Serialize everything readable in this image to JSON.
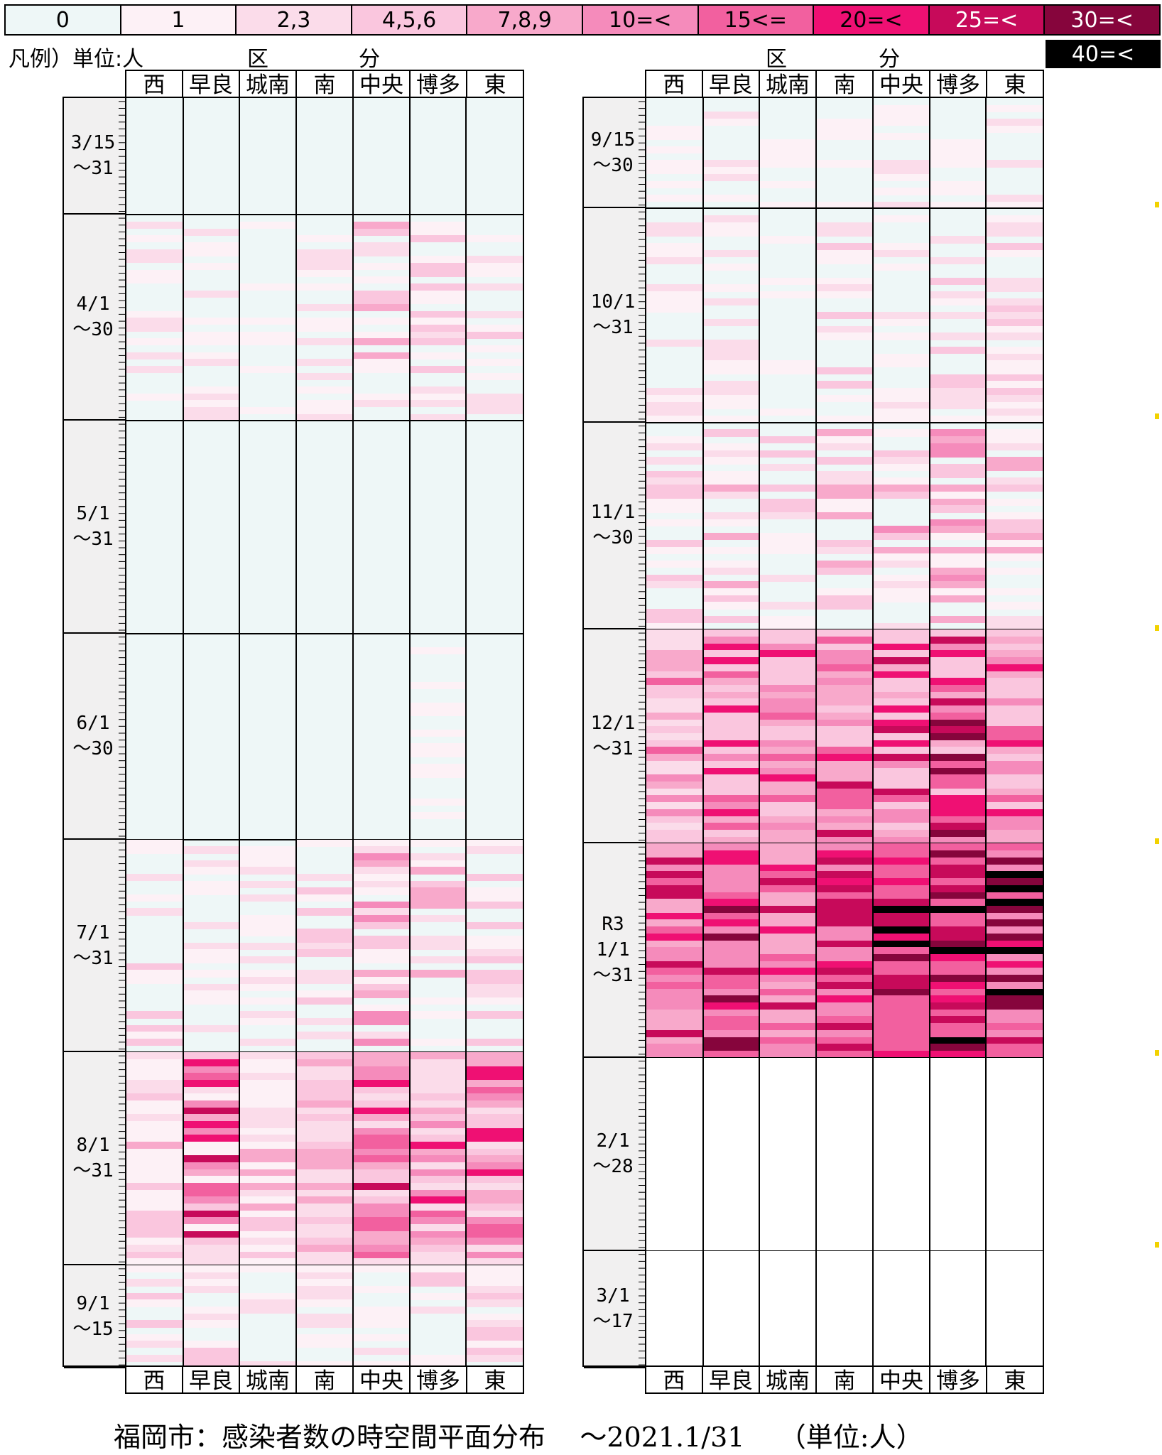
{
  "legend": {
    "items": [
      {
        "label": "0",
        "color": "#eef7f7",
        "text": "#000000"
      },
      {
        "label": "1",
        "color": "#fdf1f6",
        "text": "#000000"
      },
      {
        "label": "2,3",
        "color": "#fbdcea",
        "text": "#000000"
      },
      {
        "label": "4,5,6",
        "color": "#fac6de",
        "text": "#000000"
      },
      {
        "label": "7,8,9",
        "color": "#f8a9cb",
        "text": "#000000"
      },
      {
        "label": "10=<",
        "color": "#f58bbb",
        "text": "#000000"
      },
      {
        "label": "15<=",
        "color": "#f2609f",
        "text": "#000000"
      },
      {
        "label": "20=<",
        "color": "#ef1073",
        "text": "#000000"
      },
      {
        "label": "25=<",
        "color": "#c70a5a",
        "text": "#ffffff"
      },
      {
        "label": "30=<",
        "color": "#86053c",
        "text": "#ffffff"
      }
    ],
    "extra": {
      "label": "40=<",
      "color": "#000000",
      "text": "#ffffff"
    },
    "unit_label": "凡例）単位:人",
    "kubun_left": "区",
    "kubun_right": "分"
  },
  "chart_data": {
    "type": "heatmap",
    "title": "福岡市：感染者数の時空間平面分布",
    "subtitle": "～2021.1/31",
    "unit_note": "（単位:人）",
    "columns": [
      "西",
      "早良",
      "城南",
      "南",
      "中央",
      "博多",
      "東"
    ],
    "color_scale_bins": [
      "0",
      "1",
      "2,3",
      "4,5,6",
      "7,8,9",
      "10=<",
      "15<=",
      "20=<",
      "25=<",
      "30=<",
      "40=<"
    ],
    "panels": [
      {
        "periods": [
          {
            "label": "3/15\n～31",
            "days": 17
          },
          {
            "label": "4/1\n～30",
            "days": 30
          },
          {
            "label": "5/1\n～31",
            "days": 31
          },
          {
            "label": "6/1\n～30",
            "days": 30
          },
          {
            "label": "7/1\n～31",
            "days": 31
          },
          {
            "label": "8/1\n～31",
            "days": 31
          },
          {
            "label": "9/1\n～15",
            "days": 15
          }
        ],
        "level_ranges": [
          [
            [
              0,
              0
            ],
            [
              0,
              0
            ],
            [
              0,
              0
            ],
            [
              0,
              0
            ],
            [
              0,
              0
            ],
            [
              0,
              0
            ],
            [
              0,
              0
            ]
          ],
          [
            [
              0,
              2
            ],
            [
              0,
              2
            ],
            [
              0,
              1
            ],
            [
              0,
              2
            ],
            [
              0,
              4
            ],
            [
              0,
              3
            ],
            [
              0,
              3
            ]
          ],
          [
            [
              0,
              0
            ],
            [
              0,
              0
            ],
            [
              0,
              0
            ],
            [
              0,
              0
            ],
            [
              0,
              0
            ],
            [
              0,
              0
            ],
            [
              0,
              0
            ]
          ],
          [
            [
              0,
              0
            ],
            [
              0,
              0
            ],
            [
              0,
              0
            ],
            [
              0,
              0
            ],
            [
              0,
              0
            ],
            [
              0,
              1
            ],
            [
              0,
              0
            ]
          ],
          [
            [
              0,
              3
            ],
            [
              0,
              2
            ],
            [
              0,
              2
            ],
            [
              0,
              3
            ],
            [
              0,
              5
            ],
            [
              0,
              4
            ],
            [
              0,
              3
            ]
          ],
          [
            [
              1,
              4
            ],
            [
              1,
              8
            ],
            [
              1,
              4
            ],
            [
              2,
              4
            ],
            [
              2,
              8
            ],
            [
              2,
              7
            ],
            [
              2,
              7
            ]
          ],
          [
            [
              0,
              3
            ],
            [
              0,
              3
            ],
            [
              0,
              2
            ],
            [
              0,
              2
            ],
            [
              0,
              3
            ],
            [
              0,
              3
            ],
            [
              0,
              3
            ]
          ]
        ]
      },
      {
        "periods": [
          {
            "label": "9/15\n～30",
            "days": 16
          },
          {
            "label": "10/1\n～31",
            "days": 31
          },
          {
            "label": "11/1\n～30",
            "days": 30
          },
          {
            "label": "12/1\n～31",
            "days": 31
          },
          {
            "label": "R3\n1/1\n～31",
            "days": 31
          },
          {
            "label": "2/1\n～28",
            "days": 28
          },
          {
            "label": "3/1\n～17",
            "days": 17
          }
        ],
        "level_ranges": [
          [
            [
              0,
              1
            ],
            [
              0,
              2
            ],
            [
              0,
              1
            ],
            [
              0,
              1
            ],
            [
              0,
              2
            ],
            [
              0,
              1
            ],
            [
              0,
              2
            ]
          ],
          [
            [
              0,
              2
            ],
            [
              0,
              2
            ],
            [
              0,
              1
            ],
            [
              0,
              3
            ],
            [
              0,
              2
            ],
            [
              0,
              3
            ],
            [
              0,
              3
            ]
          ],
          [
            [
              0,
              3
            ],
            [
              0,
              4
            ],
            [
              0,
              3
            ],
            [
              0,
              4
            ],
            [
              0,
              5
            ],
            [
              0,
              5
            ],
            [
              0,
              4
            ]
          ],
          [
            [
              2,
              6
            ],
            [
              3,
              7
            ],
            [
              3,
              7
            ],
            [
              3,
              8
            ],
            [
              3,
              8
            ],
            [
              3,
              9
            ],
            [
              3,
              7
            ]
          ],
          [
            [
              4,
              8
            ],
            [
              5,
              9
            ],
            [
              4,
              8
            ],
            [
              5,
              8
            ],
            [
              6,
              10
            ],
            [
              6,
              10
            ],
            [
              5,
              10
            ]
          ],
          [
            [
              -1,
              -1
            ],
            [
              -1,
              -1
            ],
            [
              -1,
              -1
            ],
            [
              -1,
              -1
            ],
            [
              -1,
              -1
            ],
            [
              -1,
              -1
            ],
            [
              -1,
              -1
            ]
          ],
          [
            [
              -1,
              -1
            ],
            [
              -1,
              -1
            ],
            [
              -1,
              -1
            ],
            [
              -1,
              -1
            ],
            [
              -1,
              -1
            ],
            [
              -1,
              -1
            ],
            [
              -1,
              -1
            ]
          ]
        ]
      }
    ]
  }
}
